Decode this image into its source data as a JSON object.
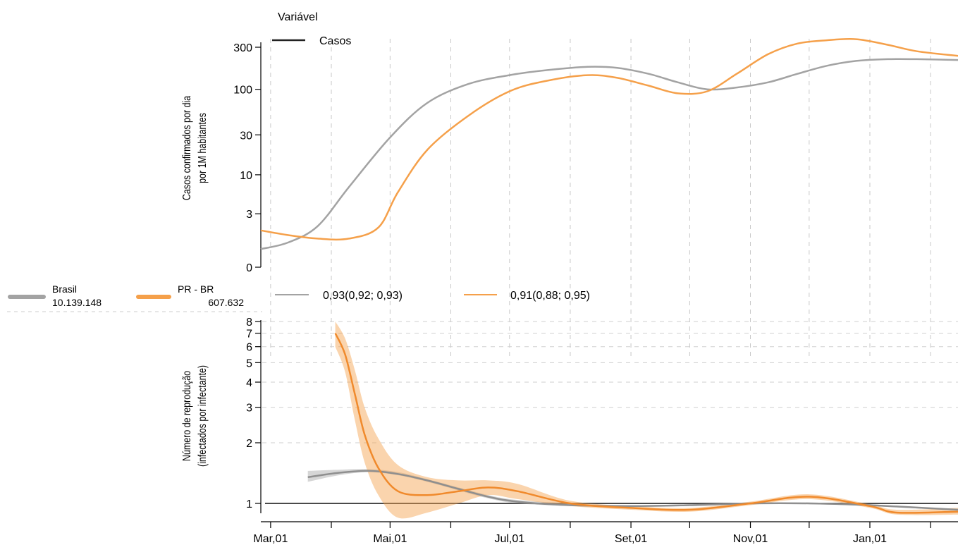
{
  "legend": {
    "variable_title": "Variável",
    "variable_item": "Casos",
    "series": [
      {
        "name": "Brasil",
        "total": "10.139.148",
        "color": "#a3a3a3"
      },
      {
        "name": "PR - BR",
        "total": "607.632",
        "color": "#f5a04a"
      }
    ],
    "estimates": [
      {
        "text": "0,93(0,92;  0,93)",
        "color": "#a3a3a3"
      },
      {
        "text": "0,91(0,88;  0,95)",
        "color": "#f5a04a"
      }
    ]
  },
  "chart_data": [
    {
      "type": "line",
      "ylabel": [
        "Casos confirmados por dia",
        "por 1M habitantes"
      ],
      "yscale": "log1p",
      "y_ticks": [
        0,
        3,
        10,
        30,
        100,
        300
      ],
      "x_ticks": [
        "Mar,01",
        "Mai,01",
        "Jul,01",
        "Set,01",
        "Nov,01",
        "Jan,01"
      ],
      "xlim": [
        "2020-02-25",
        "2021-02-15"
      ],
      "grid": "vertical-dashed",
      "series": [
        {
          "name": "Brasil",
          "color": "#a3a3a3",
          "x": [
            "2020-02-25",
            "2020-03-10",
            "2020-03-25",
            "2020-04-10",
            "2020-05-01",
            "2020-05-20",
            "2020-06-10",
            "2020-07-01",
            "2020-07-20",
            "2020-08-10",
            "2020-08-25",
            "2020-09-10",
            "2020-09-25",
            "2020-10-10",
            "2020-10-25",
            "2020-11-10",
            "2020-11-25",
            "2020-12-10",
            "2020-12-25",
            "2021-01-10",
            "2021-01-25",
            "2021-02-15"
          ],
          "y": [
            0.6,
            0.9,
            1.9,
            7,
            28,
            70,
            115,
            145,
            165,
            180,
            175,
            150,
            120,
            100,
            105,
            120,
            150,
            185,
            210,
            220,
            220,
            215
          ]
        },
        {
          "name": "PR - BR",
          "color": "#f5a04a",
          "x": [
            "2020-02-25",
            "2020-03-10",
            "2020-03-25",
            "2020-04-10",
            "2020-04-25",
            "2020-05-05",
            "2020-05-20",
            "2020-06-10",
            "2020-07-01",
            "2020-07-20",
            "2020-08-10",
            "2020-08-25",
            "2020-09-10",
            "2020-09-25",
            "2020-10-10",
            "2020-10-25",
            "2020-11-10",
            "2020-11-25",
            "2020-12-10",
            "2020-12-25",
            "2021-01-10",
            "2021-01-25",
            "2021-02-15"
          ],
          "y": [
            1.6,
            1.3,
            1.1,
            1.1,
            1.8,
            6,
            20,
            50,
            95,
            125,
            145,
            135,
            110,
            90,
            95,
            150,
            250,
            330,
            360,
            370,
            320,
            270,
            240
          ]
        }
      ]
    },
    {
      "type": "line",
      "ylabel": [
        "Número de reprodução",
        "(infectados por infectante)"
      ],
      "yscale": "log",
      "y_ticks": [
        1,
        2,
        3,
        4,
        5,
        6,
        7,
        8
      ],
      "x_ticks": [
        "Mar,01",
        "Mai,01",
        "Jul,01",
        "Set,01",
        "Nov,01",
        "Jan,01"
      ],
      "xlim": [
        "2020-02-25",
        "2021-02-15"
      ],
      "reference_line": 1,
      "grid": "horizontal-dashed",
      "series": [
        {
          "name": "Brasil",
          "color": "#a3a3a3",
          "x": [
            "2020-03-20",
            "2020-04-05",
            "2020-04-20",
            "2020-05-05",
            "2020-05-20",
            "2020-06-05",
            "2020-06-20",
            "2020-07-05",
            "2020-08-01",
            "2020-09-01",
            "2020-10-01",
            "2020-11-01",
            "2020-12-01",
            "2021-01-01",
            "2021-02-15"
          ],
          "y": [
            1.35,
            1.42,
            1.45,
            1.4,
            1.3,
            1.18,
            1.08,
            1.02,
            0.98,
            0.97,
            0.98,
            1.0,
            1.0,
            0.98,
            0.93
          ],
          "lower": [
            1.28,
            1.38,
            1.43,
            1.38,
            1.28,
            1.16,
            1.06,
            1.0,
            0.97,
            0.96,
            0.97,
            0.99,
            0.99,
            0.97,
            0.92
          ],
          "upper": [
            1.45,
            1.47,
            1.48,
            1.43,
            1.32,
            1.2,
            1.1,
            1.04,
            1.0,
            0.98,
            0.99,
            1.01,
            1.01,
            0.99,
            0.93
          ]
        },
        {
          "name": "PR - BR",
          "color": "#f5a04a",
          "x": [
            "2020-04-03",
            "2020-04-08",
            "2020-04-13",
            "2020-04-18",
            "2020-04-25",
            "2020-05-05",
            "2020-05-20",
            "2020-06-05",
            "2020-06-20",
            "2020-07-05",
            "2020-08-01",
            "2020-09-01",
            "2020-10-01",
            "2020-11-01",
            "2020-12-01",
            "2021-01-01",
            "2021-01-15",
            "2021-02-15"
          ],
          "y": [
            7.0,
            5.5,
            3.5,
            2.2,
            1.5,
            1.15,
            1.1,
            1.15,
            1.2,
            1.15,
            1.0,
            0.95,
            0.93,
            1.0,
            1.08,
            0.97,
            0.9,
            0.91
          ],
          "lower": [
            6.0,
            4.5,
            2.6,
            1.6,
            1.1,
            0.85,
            0.9,
            1.0,
            1.1,
            1.05,
            0.97,
            0.93,
            0.91,
            0.98,
            1.05,
            0.95,
            0.88,
            0.88
          ],
          "upper": [
            8.0,
            6.6,
            4.6,
            3.0,
            2.1,
            1.55,
            1.35,
            1.3,
            1.3,
            1.25,
            1.03,
            0.97,
            0.95,
            1.02,
            1.11,
            0.99,
            0.93,
            0.95
          ]
        }
      ]
    }
  ]
}
